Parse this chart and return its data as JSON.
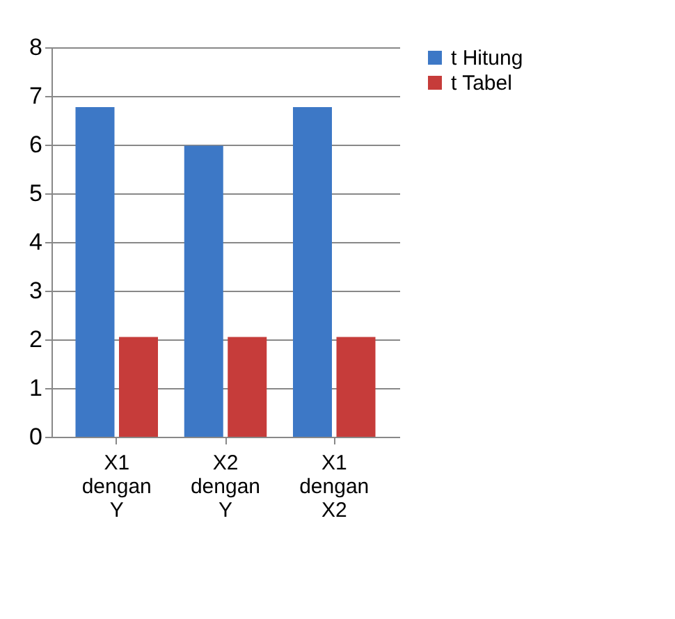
{
  "chart_data": {
    "type": "bar",
    "categories": [
      "X1 dengan Y",
      "X2 dengan Y",
      "X1 dengan X2"
    ],
    "series": [
      {
        "name": "t Hitung",
        "color": "#3d78c6",
        "values": [
          6.77,
          5.98,
          6.77
        ]
      },
      {
        "name": "t Tabel",
        "color": "#c63c3a",
        "values": [
          2.05,
          2.05,
          2.05
        ]
      }
    ],
    "ylim": [
      0,
      8
    ],
    "yticks": [
      0,
      1,
      2,
      3,
      4,
      5,
      6,
      7,
      8
    ],
    "grid": "y",
    "legend": "right"
  }
}
